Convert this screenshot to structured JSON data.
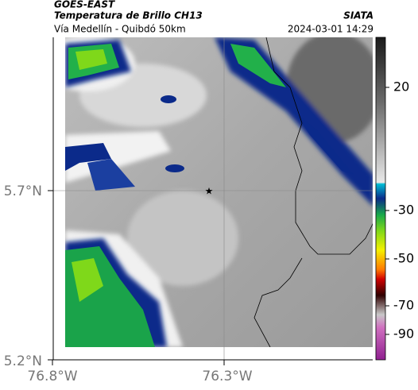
{
  "header": {
    "source": "GOES-EAST",
    "title": "Temperatura de Brillo CH13",
    "subtitle": "Vía Medellín - Quibdó 50km",
    "organization": "SIATA",
    "timestamp": "2024-03-01 14:29"
  },
  "map": {
    "lat_ticks": [
      "5.7°N",
      "5.2°N"
    ],
    "lon_ticks": [
      "76.8°W",
      "76.3°W"
    ]
  },
  "colorbar": {
    "ticks": [
      "20",
      "-30",
      "-50",
      "-70",
      "-90"
    ]
  }
}
